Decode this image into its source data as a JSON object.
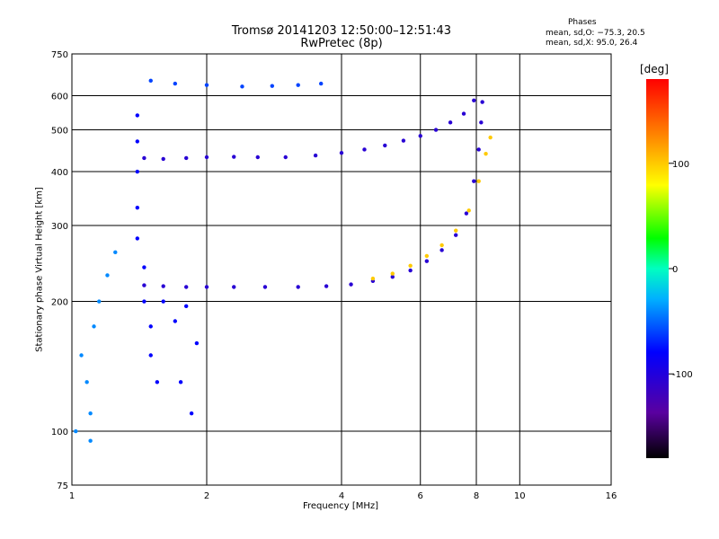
{
  "chart_data": {
    "type": "scatter",
    "title_line1": "Tromsø 20141203 12:50:00–12:51:43",
    "title_line2": "RwPretec (8p)",
    "phases_title": "Phases",
    "phases_o": "mean, sd,O: −75.3, 20.5",
    "phases_x": "mean, sd,X:  95.0, 26.4",
    "xlabel": "Frequency [MHz]",
    "ylabel": "Stationary phase Virtual Height [km]",
    "x_scale": "log",
    "y_scale": "log",
    "xlim": [
      1,
      16
    ],
    "ylim": [
      75,
      750
    ],
    "x_ticks": [
      1,
      2,
      4,
      6,
      8,
      10,
      16
    ],
    "y_ticks": [
      75,
      100,
      200,
      300,
      400,
      500,
      600,
      750
    ],
    "grid": true,
    "colorbar": {
      "unit": "[deg]",
      "range": [
        -180,
        180
      ],
      "ticks": [
        100,
        0,
        -100
      ]
    },
    "traces": [
      {
        "name": "",
        "phase": -105,
        "points": [
          [
            1.45,
            430
          ],
          [
            1.6,
            428
          ],
          [
            1.8,
            430
          ],
          [
            2.0,
            432
          ],
          [
            2.3,
            433
          ],
          [
            2.6,
            432
          ],
          [
            3.0,
            432
          ],
          [
            3.5,
            436
          ],
          [
            4.0,
            442
          ],
          [
            4.5,
            450
          ],
          [
            5.0,
            460
          ],
          [
            5.5,
            472
          ],
          [
            6.0,
            484
          ],
          [
            6.5,
            500
          ],
          [
            7.0,
            520
          ],
          [
            7.5,
            545
          ],
          [
            7.9,
            585
          ]
        ]
      },
      {
        "name": "",
        "phase": -105,
        "points": [
          [
            1.45,
            218
          ],
          [
            1.6,
            217
          ],
          [
            1.8,
            216
          ],
          [
            2.0,
            216
          ],
          [
            2.3,
            216
          ],
          [
            2.7,
            216
          ],
          [
            3.2,
            216
          ],
          [
            3.7,
            217
          ],
          [
            4.2,
            219
          ],
          [
            4.7,
            223
          ],
          [
            5.2,
            228
          ],
          [
            5.7,
            236
          ],
          [
            6.2,
            248
          ],
          [
            6.7,
            263
          ],
          [
            7.2,
            285
          ],
          [
            7.6,
            320
          ],
          [
            7.9,
            380
          ],
          [
            8.1,
            450
          ],
          [
            8.2,
            520
          ],
          [
            8.25,
            580
          ]
        ]
      },
      {
        "name": "",
        "phase": 100,
        "points": [
          [
            4.7,
            226
          ],
          [
            5.2,
            232
          ],
          [
            5.7,
            242
          ],
          [
            6.2,
            255
          ],
          [
            6.7,
            270
          ],
          [
            7.2,
            292
          ],
          [
            7.7,
            325
          ],
          [
            8.1,
            380
          ],
          [
            8.4,
            440
          ],
          [
            8.6,
            480
          ]
        ]
      },
      {
        "name": "",
        "phase": -80,
        "points": [
          [
            1.4,
            540
          ],
          [
            1.4,
            470
          ],
          [
            1.4,
            400
          ],
          [
            1.4,
            330
          ],
          [
            1.4,
            280
          ],
          [
            1.45,
            240
          ],
          [
            1.45,
            200
          ],
          [
            1.5,
            175
          ],
          [
            1.5,
            150
          ],
          [
            1.55,
            130
          ],
          [
            1.6,
            200
          ],
          [
            1.7,
            180
          ],
          [
            1.8,
            195
          ],
          [
            1.9,
            160
          ],
          [
            1.75,
            130
          ],
          [
            1.85,
            110
          ]
        ]
      },
      {
        "name": "",
        "phase": -40,
        "points": [
          [
            1.05,
            150
          ],
          [
            1.08,
            130
          ],
          [
            1.1,
            110
          ],
          [
            1.12,
            175
          ],
          [
            1.15,
            200
          ],
          [
            1.2,
            230
          ],
          [
            1.25,
            260
          ],
          [
            1.02,
            100
          ],
          [
            1.1,
            95
          ]
        ]
      },
      {
        "name": "",
        "phase": -60,
        "points": [
          [
            1.5,
            650
          ],
          [
            1.7,
            640
          ],
          [
            2.0,
            635
          ],
          [
            2.4,
            630
          ],
          [
            2.8,
            632
          ],
          [
            3.2,
            635
          ],
          [
            3.6,
            640
          ]
        ]
      }
    ]
  }
}
